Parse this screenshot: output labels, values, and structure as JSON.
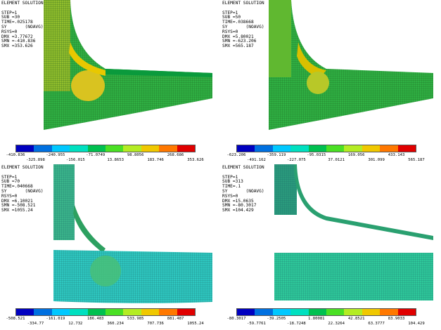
{
  "colors": [
    "#0000c0",
    "#0070e0",
    "#00c8ff",
    "#00e0c0",
    "#00c050",
    "#4ae024",
    "#b4ec24",
    "#f0c800",
    "#ff7800",
    "#e00000"
  ],
  "panels": [
    {
      "info": [
        "ELEMENT SOLUTION",
        "",
        "STEP=1",
        "SUB =30",
        "TIME=.025178",
        "SY       (NOAVG)",
        "RSYS=0",
        "DMX =3.77672",
        "SMN =-410.836",
        "SMX =353.626"
      ],
      "ticks": [
        "-410.836",
        "-325.898",
        "-240.955",
        "-156.015",
        "-71.0749",
        "13.8653",
        "98.8056",
        "183.746",
        "268.686",
        "353.626"
      ]
    },
    {
      "info": [
        "ELEMENT SOLUTION",
        "",
        "STEP=1",
        "SUB =50",
        "TIME=.038668",
        "SY       (NOAVG)",
        "RSYS=0",
        "DMX =5.80021",
        "SMN =-623.206",
        "SMX =565.187"
      ],
      "ticks": [
        "-623.206",
        "-491.162",
        "-359.119",
        "-227.075",
        "-95.0315",
        "37.0121",
        "169.056",
        "301.099",
        "433.143",
        "565.187"
      ]
    },
    {
      "info": [
        "ELEMENT SOLUTION",
        "",
        "STEP=1",
        "SUB =70",
        "TIME=.040668",
        "SY       (NOAVG)",
        "RSYS=0",
        "DMX =6.10021",
        "SMN =-508.521",
        "SMX =1055.24"
      ],
      "ticks": [
        "-508.521",
        "-334.77",
        "-161.019",
        "12.732",
        "186.483",
        "360.234",
        "533.985",
        "707.736",
        "881.487",
        "1055.24"
      ]
    },
    {
      "info": [
        "ELEMENT SOLUTION",
        "",
        "STEP=1",
        "SUB =313",
        "TIME=.1",
        "SY       (NOAVG)",
        "RSYS=0",
        "DMX =15.0635",
        "SMN =-80.3017",
        "SMX =104.429"
      ],
      "ticks": [
        "-80.3017",
        "-59.7761",
        "-39.2505",
        "-18.7248",
        "1.80081",
        "22.3264",
        "42.8521",
        "63.3777",
        "83.9033",
        "104.429"
      ]
    }
  ]
}
